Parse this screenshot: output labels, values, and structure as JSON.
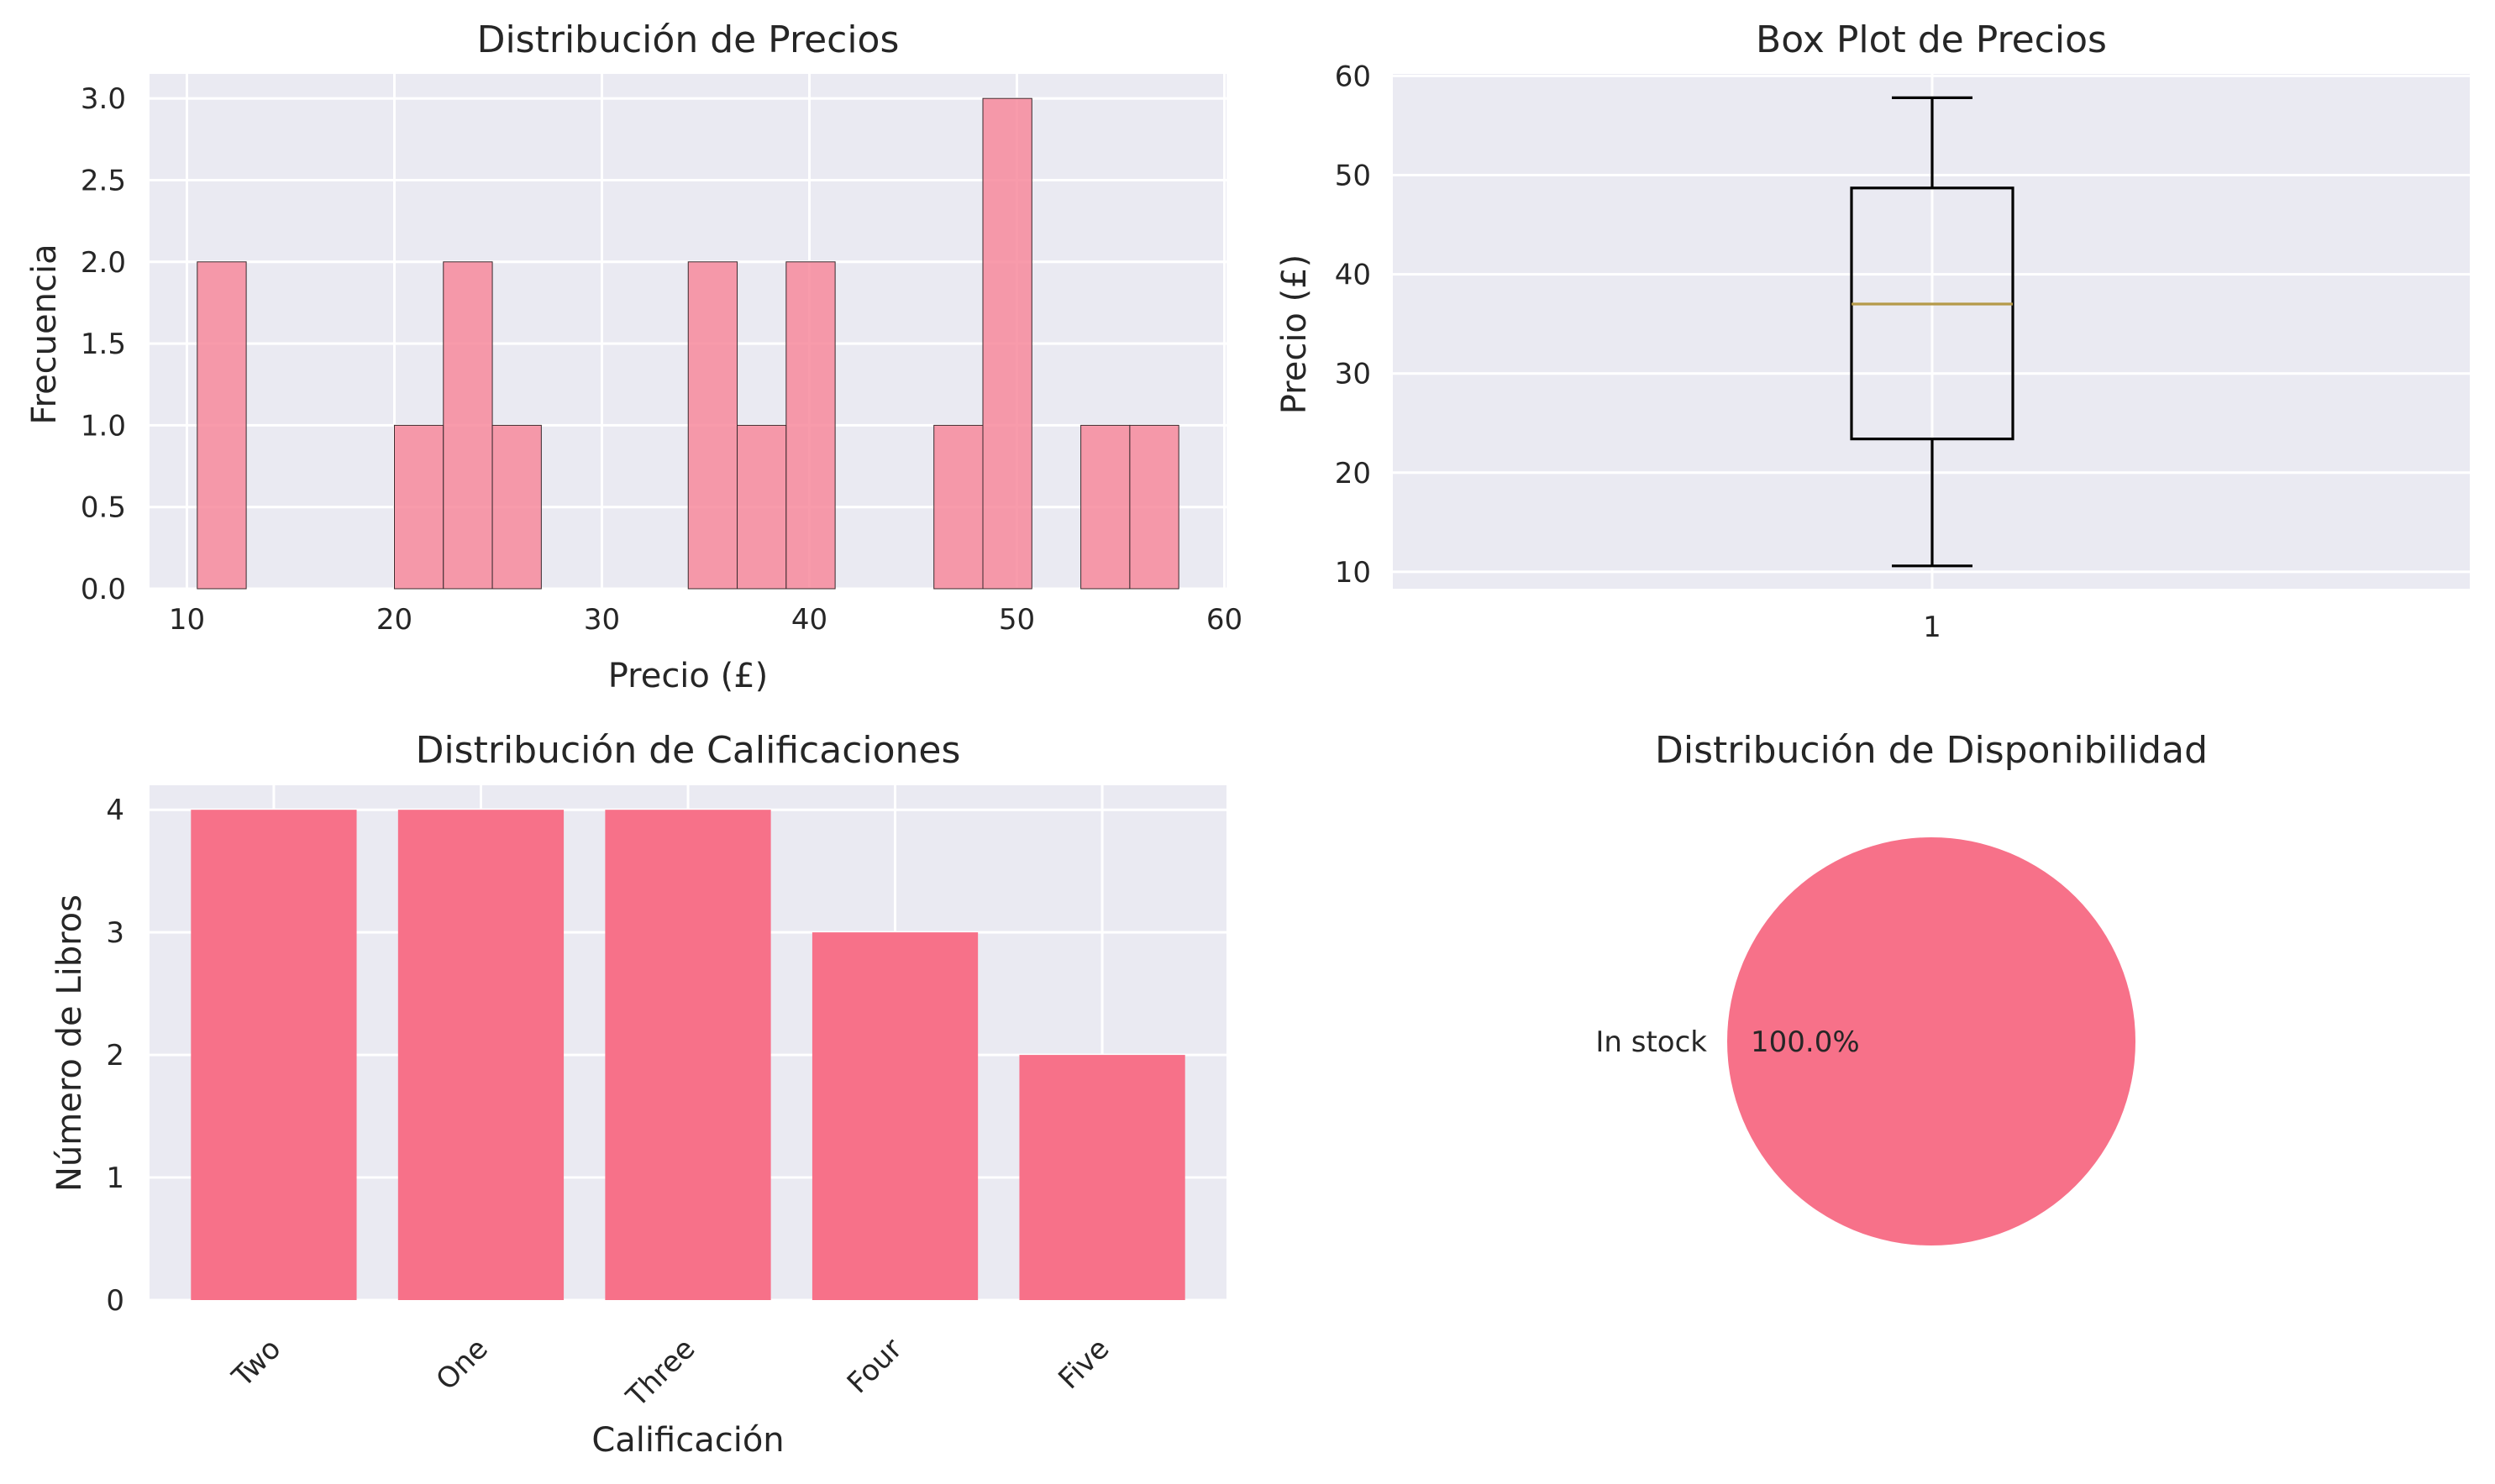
{
  "chart_data": [
    {
      "type": "bar",
      "subtype": "histogram",
      "title": "Distribución de Precios",
      "xlabel": "Precio (£)",
      "ylabel": "Frecuencia",
      "bins": [
        {
          "x0": 10.5,
          "x1": 12.86,
          "count": 2
        },
        {
          "x0": 20.0,
          "x1": 22.36,
          "count": 1
        },
        {
          "x0": 22.36,
          "x1": 24.72,
          "count": 2
        },
        {
          "x0": 24.72,
          "x1": 27.08,
          "count": 1
        },
        {
          "x0": 34.16,
          "x1": 36.52,
          "count": 2
        },
        {
          "x0": 36.52,
          "x1": 38.88,
          "count": 1
        },
        {
          "x0": 38.88,
          "x1": 41.24,
          "count": 2
        },
        {
          "x0": 46.0,
          "x1": 48.36,
          "count": 1
        },
        {
          "x0": 48.36,
          "x1": 50.72,
          "count": 3
        },
        {
          "x0": 53.08,
          "x1": 55.44,
          "count": 1
        },
        {
          "x0": 55.44,
          "x1": 57.8,
          "count": 1
        }
      ],
      "xlim": [
        8.2,
        60.1
      ],
      "ylim": [
        0,
        3.15
      ],
      "xticks": [
        "10",
        "20",
        "30",
        "40",
        "50",
        "60"
      ],
      "yticks": [
        "0.0",
        "0.5",
        "1.0",
        "1.5",
        "2.0",
        "2.5",
        "3.0"
      ],
      "grid": true,
      "color": "#f7899c"
    },
    {
      "type": "box",
      "title": "Box Plot de Precios",
      "ylabel": "Precio (£)",
      "categories": [
        "1"
      ],
      "stats": {
        "min": 10.6,
        "q1": 23.4,
        "median": 37.0,
        "q3": 48.7,
        "max": 57.8
      },
      "ylim": [
        8.3,
        60.2
      ],
      "yticks": [
        "10",
        "20",
        "30",
        "40",
        "50",
        "60"
      ],
      "grid": true
    },
    {
      "type": "bar",
      "title": "Distribución de Calificaciones",
      "xlabel": "Calificación",
      "ylabel": "Número de Libros",
      "categories": [
        "Two",
        "One",
        "Three",
        "Four",
        "Five"
      ],
      "values": [
        4,
        4,
        4,
        3,
        2
      ],
      "ylim": [
        0,
        4.2
      ],
      "yticks": [
        "0",
        "1",
        "2",
        "3",
        "4"
      ],
      "grid": true,
      "color": "#f77189"
    },
    {
      "type": "pie",
      "title": "Distribución de Disponibilidad",
      "labels": [
        "In stock"
      ],
      "values": [
        100.0
      ],
      "autopct": [
        "100.0%"
      ],
      "color": "#f77189"
    }
  ]
}
